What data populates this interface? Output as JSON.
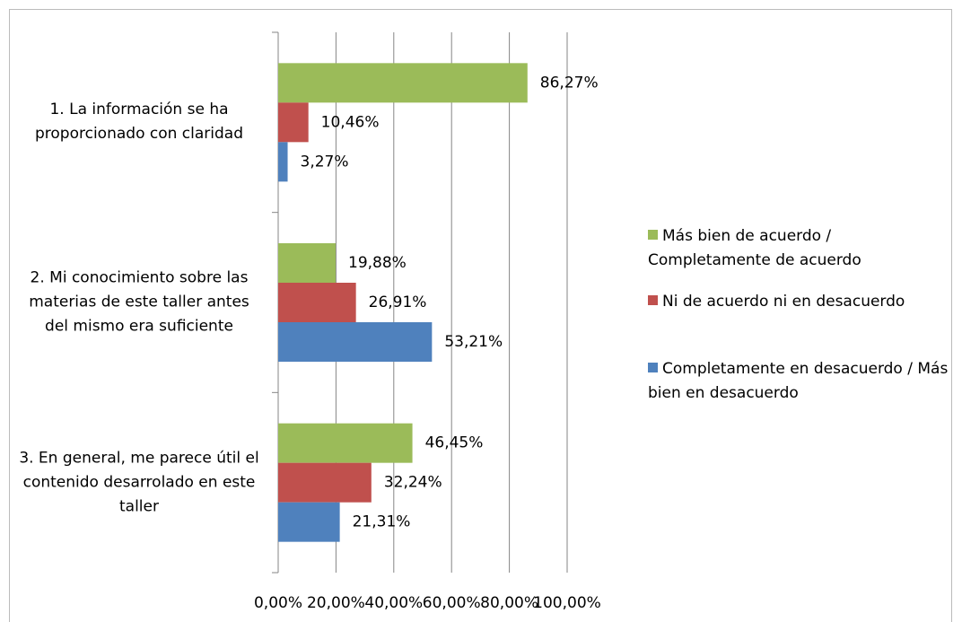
{
  "chart_data": {
    "type": "bar",
    "orientation": "horizontal",
    "categories": [
      "1. La información se ha proporcionado con claridad",
      "2. Mi conocimiento sobre las materias de este taller antes del mismo era suficiente",
      "3. En general, me parece útil el contenido desarrolado en este taller"
    ],
    "series": [
      {
        "name": "Más bien de acuerdo / Completamente de acuerdo",
        "color": "#9bbb59",
        "values": [
          86.27,
          19.88,
          46.45
        ],
        "value_labels": [
          "86,27%",
          "19,88%",
          "46,45%"
        ]
      },
      {
        "name": "Ni de acuerdo ni en desacuerdo",
        "color": "#c0504d",
        "values": [
          10.46,
          26.91,
          32.24
        ],
        "value_labels": [
          "10,46%",
          "26,91%",
          "32,24%"
        ]
      },
      {
        "name": "Completamente en desacuerdo / Más bien en desacuerdo",
        "color": "#4f81bd",
        "values": [
          3.27,
          53.21,
          21.31
        ],
        "value_labels": [
          "3,27%",
          "53,21%",
          "21,31%"
        ]
      }
    ],
    "xlim": [
      0,
      100
    ],
    "xticks": [
      {
        "value": 0,
        "label": "0,00%"
      },
      {
        "value": 20,
        "label": "20,00%"
      },
      {
        "value": 40,
        "label": "40,00%"
      },
      {
        "value": 60,
        "label": "60,00%"
      },
      {
        "value": 80,
        "label": "80,00%"
      },
      {
        "value": 100,
        "label": "100,00%"
      }
    ],
    "grid": true,
    "legend": "right"
  }
}
